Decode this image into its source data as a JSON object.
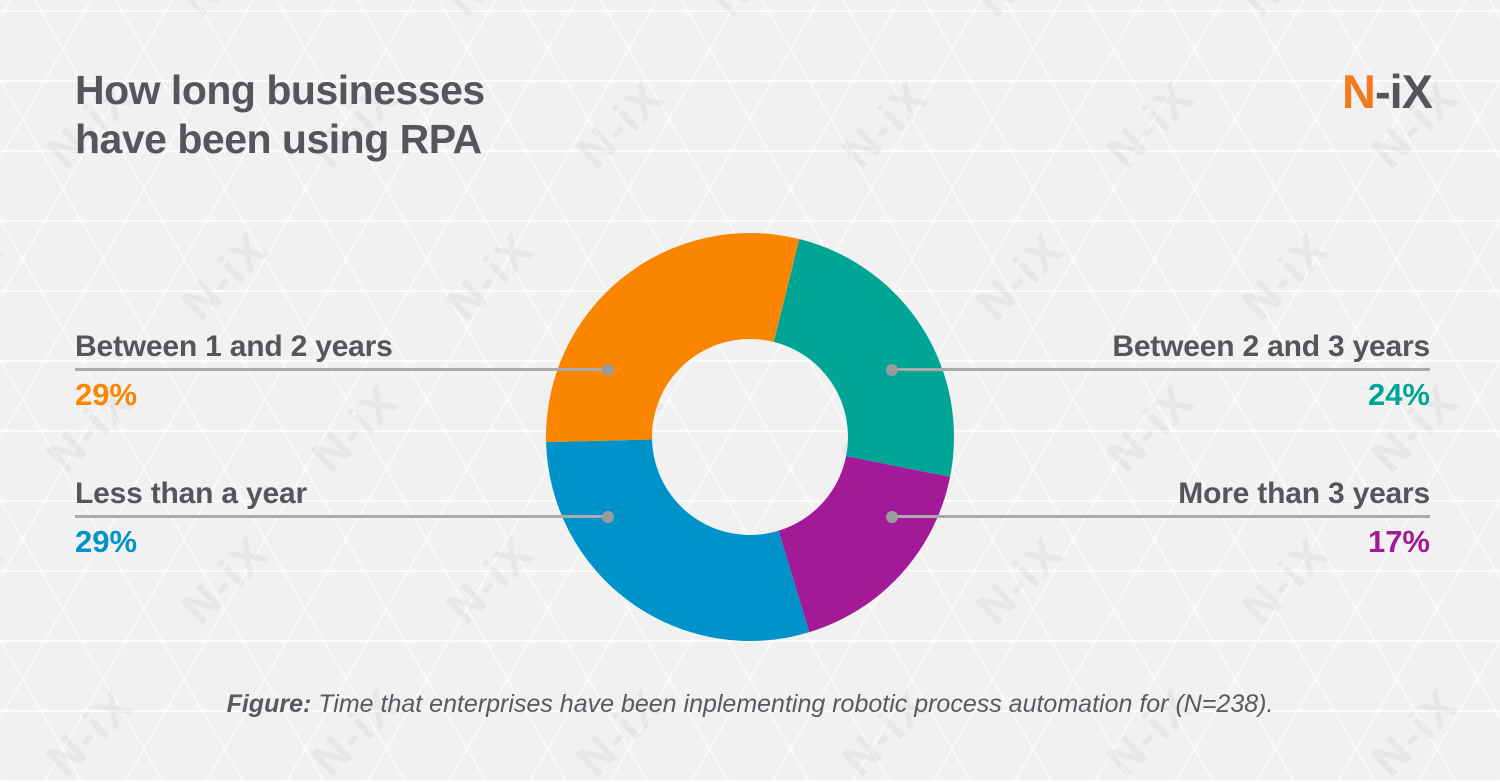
{
  "title": {
    "line1": "How long businesses",
    "line2": "have been using RPA"
  },
  "logo": {
    "highlight": "N",
    "rest": "-iX",
    "highlight_color": "#F47A20",
    "rest_color": "#55565B"
  },
  "watermark_text": "N-iX",
  "caption": {
    "prefix": "Figure:",
    "text": "Time that enterprises have been inplementing robotic process automation for (N=238)."
  },
  "chart_data": {
    "type": "pie",
    "subtype": "donut",
    "title": "How long businesses have been using RPA",
    "unit": "%",
    "segments": [
      {
        "label": "Between 2 and 3 years",
        "value": 24,
        "color": "#00A596",
        "callout": "top-right"
      },
      {
        "label": "More than 3 years",
        "value": 17,
        "color": "#A31A98",
        "callout": "bottom-right"
      },
      {
        "label": "Less than a year",
        "value": 29,
        "color": "#0093C9",
        "callout": "bottom-left"
      },
      {
        "label": "Between 1 and 2 years",
        "value": 29,
        "color": "#FA8600",
        "callout": "top-left"
      }
    ],
    "layout": {
      "start_angle_deg": 14,
      "clockwise": true,
      "donut_hole_ratio": 0.48,
      "legend_position": "callouts-left-right",
      "connector_line_color": "#A8AAAD",
      "connector_dot_color": "#999B9E"
    }
  }
}
